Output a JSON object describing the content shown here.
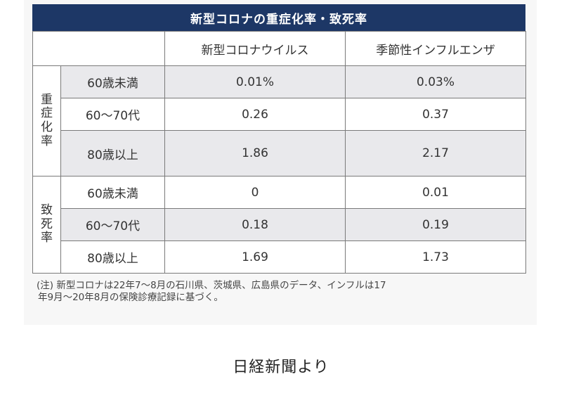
{
  "title": "新型コロナの重症化率・致死率",
  "columns": {
    "covid": "新型コロナウイルス",
    "flu": "季節性インフルエンザ"
  },
  "groups": [
    {
      "label": "重症化率",
      "rows": [
        {
          "age": "60歳未満",
          "covid": "0.01%",
          "flu": "0.03%"
        },
        {
          "age": "60〜70代",
          "covid": "0.26",
          "flu": "0.37"
        },
        {
          "age": "80歳以上",
          "covid": "1.86",
          "flu": "2.17"
        }
      ]
    },
    {
      "label": "致死率",
      "rows": [
        {
          "age": "60歳未満",
          "covid": "0",
          "flu": "0.01"
        },
        {
          "age": "60〜70代",
          "covid": "0.18",
          "flu": "0.19"
        },
        {
          "age": "80歳以上",
          "covid": "1.69",
          "flu": "1.73"
        }
      ]
    }
  ],
  "note_line1": "(注) 新型コロナは22年7〜8月の石川県、茨城県、広島県のデータ、インフルは17",
  "note_line2": "年9月〜20年8月の保険診療記録に基づく。",
  "source": "日経新聞より"
}
